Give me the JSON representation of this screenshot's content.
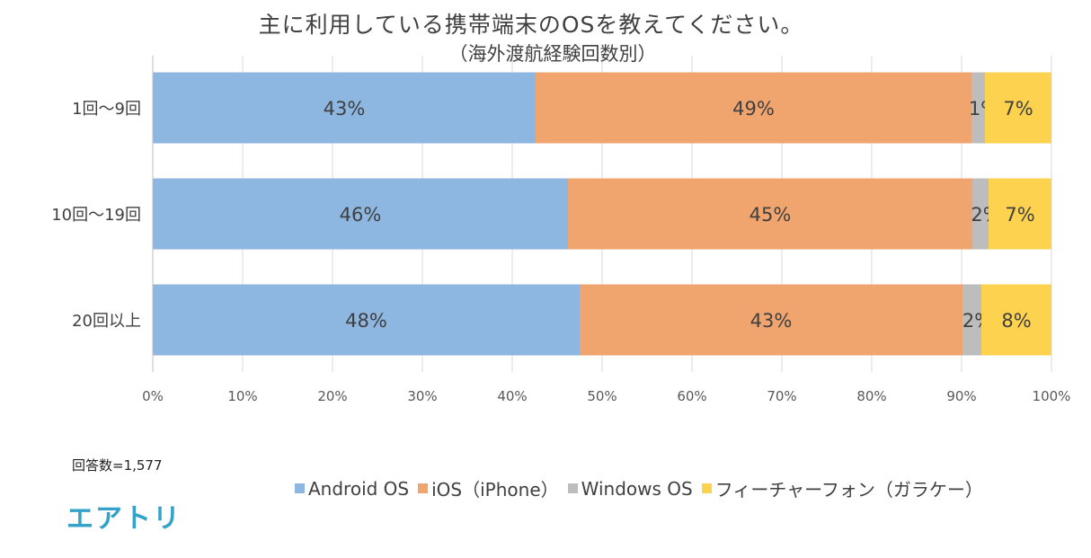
{
  "title": "主に利用している携帯端末のOSを教えてください。",
  "subtitle": "（海外渡航経験回数別）",
  "sample_size": "回答数=1,577",
  "logo": "エアトリ",
  "chart_data": {
    "type": "bar",
    "orientation": "horizontal",
    "stacked": "percent",
    "categories": [
      "1回～9回",
      "10回～19回",
      "20回以上"
    ],
    "series": [
      {
        "name": "Android OS",
        "color": "#8db6e0",
        "values": [
          42.6,
          46.2,
          47.5
        ],
        "labels": [
          "43%",
          "46%",
          "48%"
        ]
      },
      {
        "name": "iOS（iPhone）",
        "color": "#f0a46e",
        "values": [
          48.5,
          45.0,
          42.6
        ],
        "labels": [
          "49%",
          "45%",
          "43%"
        ]
      },
      {
        "name": "Windows OS",
        "color": "#bdbdbd",
        "values": [
          1.5,
          1.8,
          2.1
        ],
        "labels": [
          "1%",
          "2%",
          "2%"
        ]
      },
      {
        "name": "フィーチャーフォン（ガラケー）",
        "color": "#fdd24f",
        "values": [
          7.4,
          7.0,
          7.8
        ],
        "labels": [
          "7%",
          "7%",
          "8%"
        ]
      }
    ],
    "x_ticks": [
      "0%",
      "10%",
      "20%",
      "30%",
      "40%",
      "50%",
      "60%",
      "70%",
      "80%",
      "90%",
      "100%"
    ],
    "xlim": [
      0,
      100
    ],
    "grid": true,
    "legend_position": "bottom"
  }
}
